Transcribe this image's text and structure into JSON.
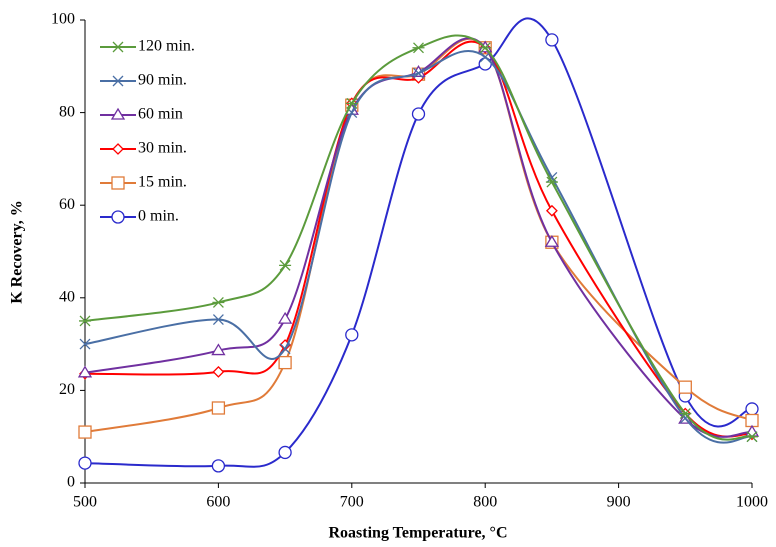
{
  "chart_data": {
    "type": "line",
    "xlabel": "Roasting Temperature, °C",
    "ylabel": "K Recovery, %",
    "x": [
      500,
      600,
      650,
      700,
      750,
      800,
      850,
      950,
      1000
    ],
    "series": [
      {
        "name": "120 min.",
        "color": "#5b9b3c",
        "marker": "star",
        "values": [
          35,
          39,
          47,
          82,
          94,
          94,
          65,
          15,
          10
        ]
      },
      {
        "name": "90 min.",
        "color": "#4a6fa5",
        "marker": "x",
        "values": [
          30,
          35.3,
          29,
          80,
          88.5,
          92,
          66,
          14,
          10
        ]
      },
      {
        "name": "60 min",
        "color": "#7030a0",
        "marker": "triangle",
        "values": [
          23.8,
          28.6,
          35.4,
          80.5,
          88.7,
          94,
          52,
          13.8,
          11
        ]
      },
      {
        "name": "30 min.",
        "color": "#ff0000",
        "marker": "diamond",
        "values": [
          23.6,
          24,
          29.8,
          82,
          87.5,
          94,
          58.8,
          15,
          10.5
        ]
      },
      {
        "name": "15 min.",
        "color": "#e07b39",
        "marker": "square",
        "values": [
          11,
          16.2,
          26,
          81.6,
          88.3,
          94,
          52,
          20.7,
          13.5
        ]
      },
      {
        "name": "0 min.",
        "color": "#2a2acc",
        "marker": "circle",
        "values": [
          4.3,
          3.7,
          6.6,
          32,
          79.7,
          90.5,
          95.7,
          18.8,
          16
        ]
      }
    ],
    "xlim": [
      500,
      1000
    ],
    "xticks": [
      500,
      600,
      700,
      800,
      900,
      1000
    ],
    "ylim": [
      0,
      100
    ],
    "yticks": [
      0,
      20,
      40,
      60,
      80,
      100
    ],
    "grid": false,
    "legend": "upper left"
  }
}
